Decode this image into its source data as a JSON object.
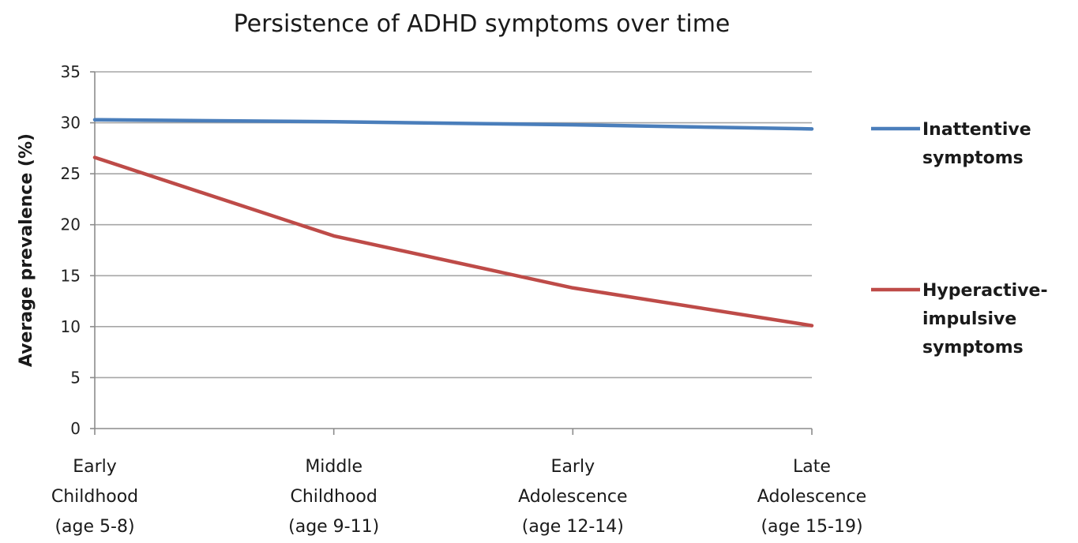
{
  "chart_data": {
    "type": "line",
    "title": "Persistence of ADHD symptoms over time",
    "ylabel": "Average prevalence (%)",
    "xlabel": "",
    "ylim": [
      0,
      35
    ],
    "yticks": [
      0,
      5,
      10,
      15,
      20,
      25,
      30,
      35
    ],
    "grid": true,
    "legend_position": "right",
    "categories": [
      [
        "Early",
        "Childhood",
        "(age 5-8)"
      ],
      [
        "Middle",
        "Childhood",
        "(age 9-11)"
      ],
      [
        "Early",
        "Adolescence",
        "(age 12-14)"
      ],
      [
        "Late",
        "Adolescence",
        "(age 15-19)"
      ]
    ],
    "series": [
      {
        "name": "Inattentive symptoms",
        "legend_lines": [
          "Inattentive",
          "symptoms"
        ],
        "color": "#4a7ebb",
        "values": [
          30.3,
          30.1,
          29.8,
          29.4
        ]
      },
      {
        "name": "Hyperactive-impulsive symptoms",
        "legend_lines": [
          "Hyperactive-",
          "impulsive",
          "symptoms"
        ],
        "color": "#be4b48",
        "values": [
          26.6,
          18.9,
          13.8,
          10.1
        ]
      }
    ]
  }
}
